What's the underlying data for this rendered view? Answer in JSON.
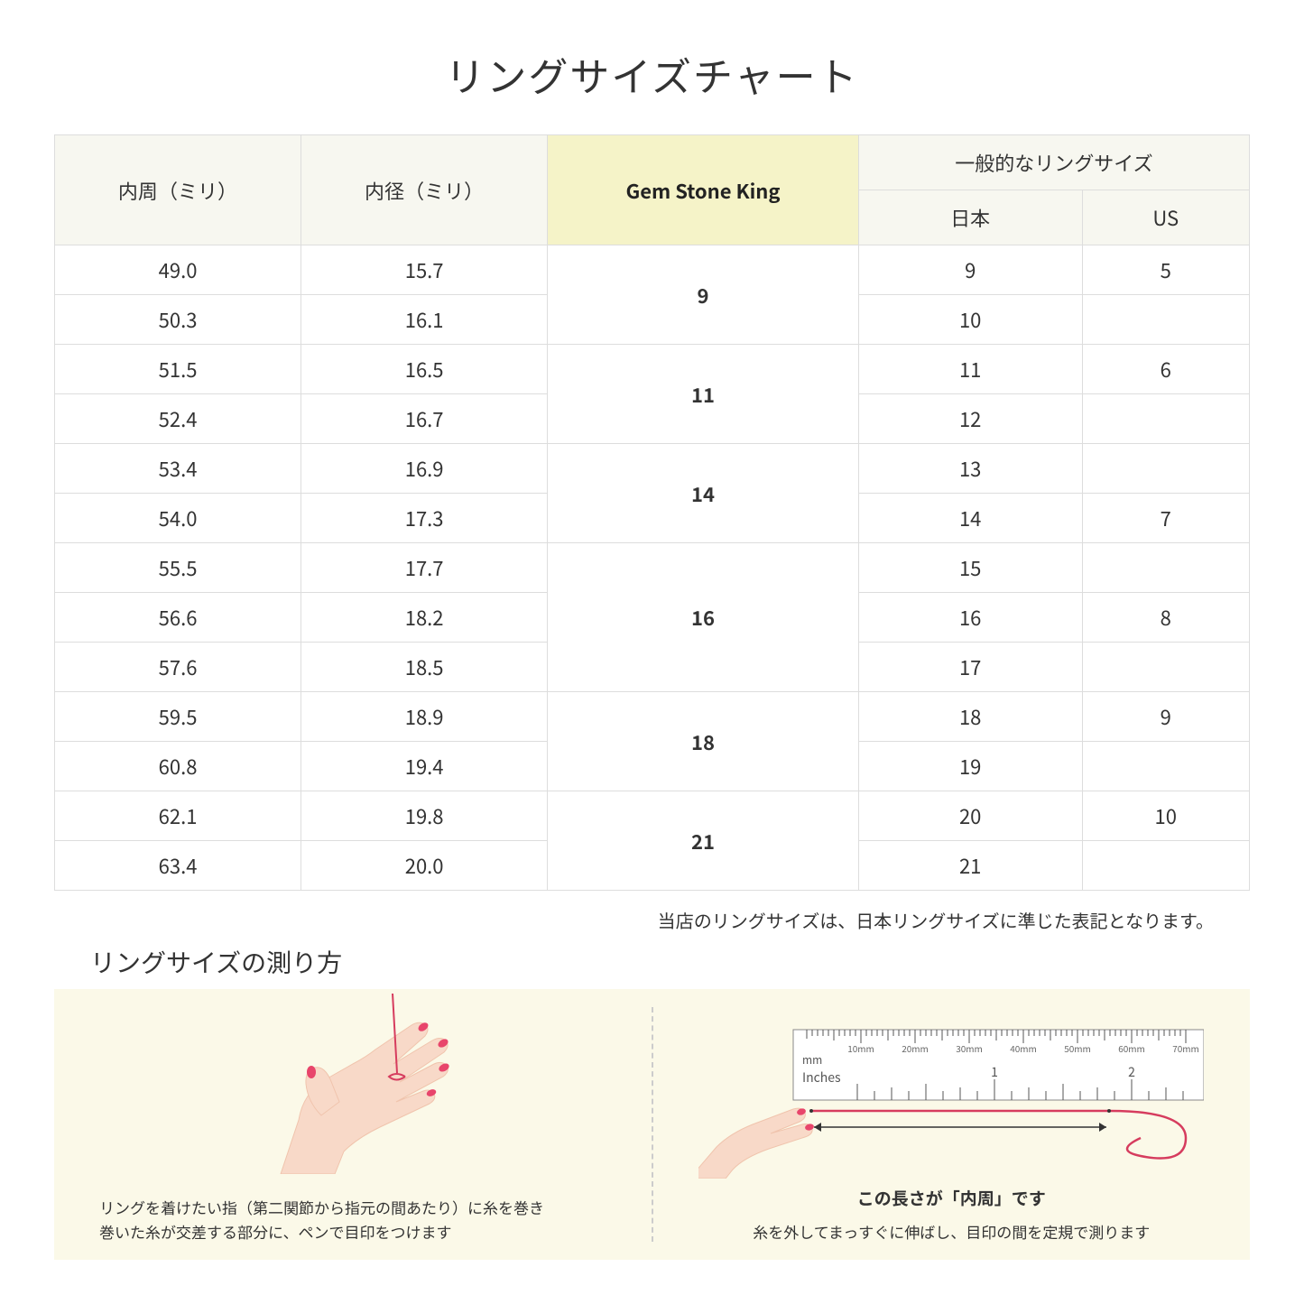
{
  "title": "リングサイズチャート",
  "table": {
    "headers": {
      "col1": "内周（ミリ）",
      "col2": "内径（ミリ）",
      "col3": "Gem Stone King",
      "col4_group": "一般的なリングサイズ",
      "col4a": "日本",
      "col4b": "US"
    },
    "rows": [
      {
        "c1": "49.0",
        "c2": "15.7",
        "gsk": "9",
        "jp": "9",
        "us": "5"
      },
      {
        "c1": "50.3",
        "c2": "16.1",
        "gsk": "",
        "jp": "10",
        "us": ""
      },
      {
        "c1": "51.5",
        "c2": "16.5",
        "gsk": "11",
        "jp": "11",
        "us": "6"
      },
      {
        "c1": "52.4",
        "c2": "16.7",
        "gsk": "",
        "jp": "12",
        "us": ""
      },
      {
        "c1": "53.4",
        "c2": "16.9",
        "gsk": "14",
        "jp": "13",
        "us": ""
      },
      {
        "c1": "54.0",
        "c2": "17.3",
        "gsk": "",
        "jp": "14",
        "us": "7"
      },
      {
        "c1": "55.5",
        "c2": "17.7",
        "gsk": "16",
        "jp": "15",
        "us": ""
      },
      {
        "c1": "56.6",
        "c2": "18.2",
        "gsk": "",
        "jp": "16",
        "us": "8"
      },
      {
        "c1": "57.6",
        "c2": "18.5",
        "gsk": "",
        "jp": "17",
        "us": ""
      },
      {
        "c1": "59.5",
        "c2": "18.9",
        "gsk": "18",
        "jp": "18",
        "us": "9"
      },
      {
        "c1": "60.8",
        "c2": "19.4",
        "gsk": "",
        "jp": "19",
        "us": ""
      },
      {
        "c1": "62.1",
        "c2": "19.8",
        "gsk": "21",
        "jp": "20",
        "us": "10"
      },
      {
        "c1": "63.4",
        "c2": "20.0",
        "gsk": "",
        "jp": "21",
        "us": ""
      }
    ],
    "gsk_spans": [
      {
        "start": 0,
        "span": 2,
        "val": "9"
      },
      {
        "start": 2,
        "span": 2,
        "val": "11"
      },
      {
        "start": 4,
        "span": 2,
        "val": "14"
      },
      {
        "start": 6,
        "span": 3,
        "val": "16"
      },
      {
        "start": 9,
        "span": 2,
        "val": "18"
      },
      {
        "start": 11,
        "span": 2,
        "val": "21"
      }
    ]
  },
  "note": "当店のリングサイズは、日本リングサイズに準じた表記となります。",
  "subtitle": "リングサイズの測り方",
  "guide": {
    "left_caption": "リングを着けたい指（第二関節から指元の間あたり）に糸を巻き\n巻いた糸が交差する部分に、ペンで目印をつけます",
    "right_caption": "糸を外してまっすぐに伸ばし、目印の間を定規で測ります",
    "measure_label": "この長さが「内周」です",
    "ruler_labels": {
      "mm": "mm",
      "inches": "Inches",
      "ticks": [
        "10mm",
        "20mm",
        "30mm",
        "40mm",
        "50mm",
        "60mm",
        "70mm"
      ],
      "inch_ticks": [
        "1",
        "2"
      ]
    }
  },
  "colors": {
    "header_bg": "#f7f7f0",
    "highlight_bg": "#f5f3c8",
    "guide_bg": "#fbf9e8",
    "border": "#dddddd",
    "skin": "#f8d9c8",
    "skin_dark": "#f0c4ad",
    "nail": "#e8456b",
    "thread": "#d63c5e"
  }
}
